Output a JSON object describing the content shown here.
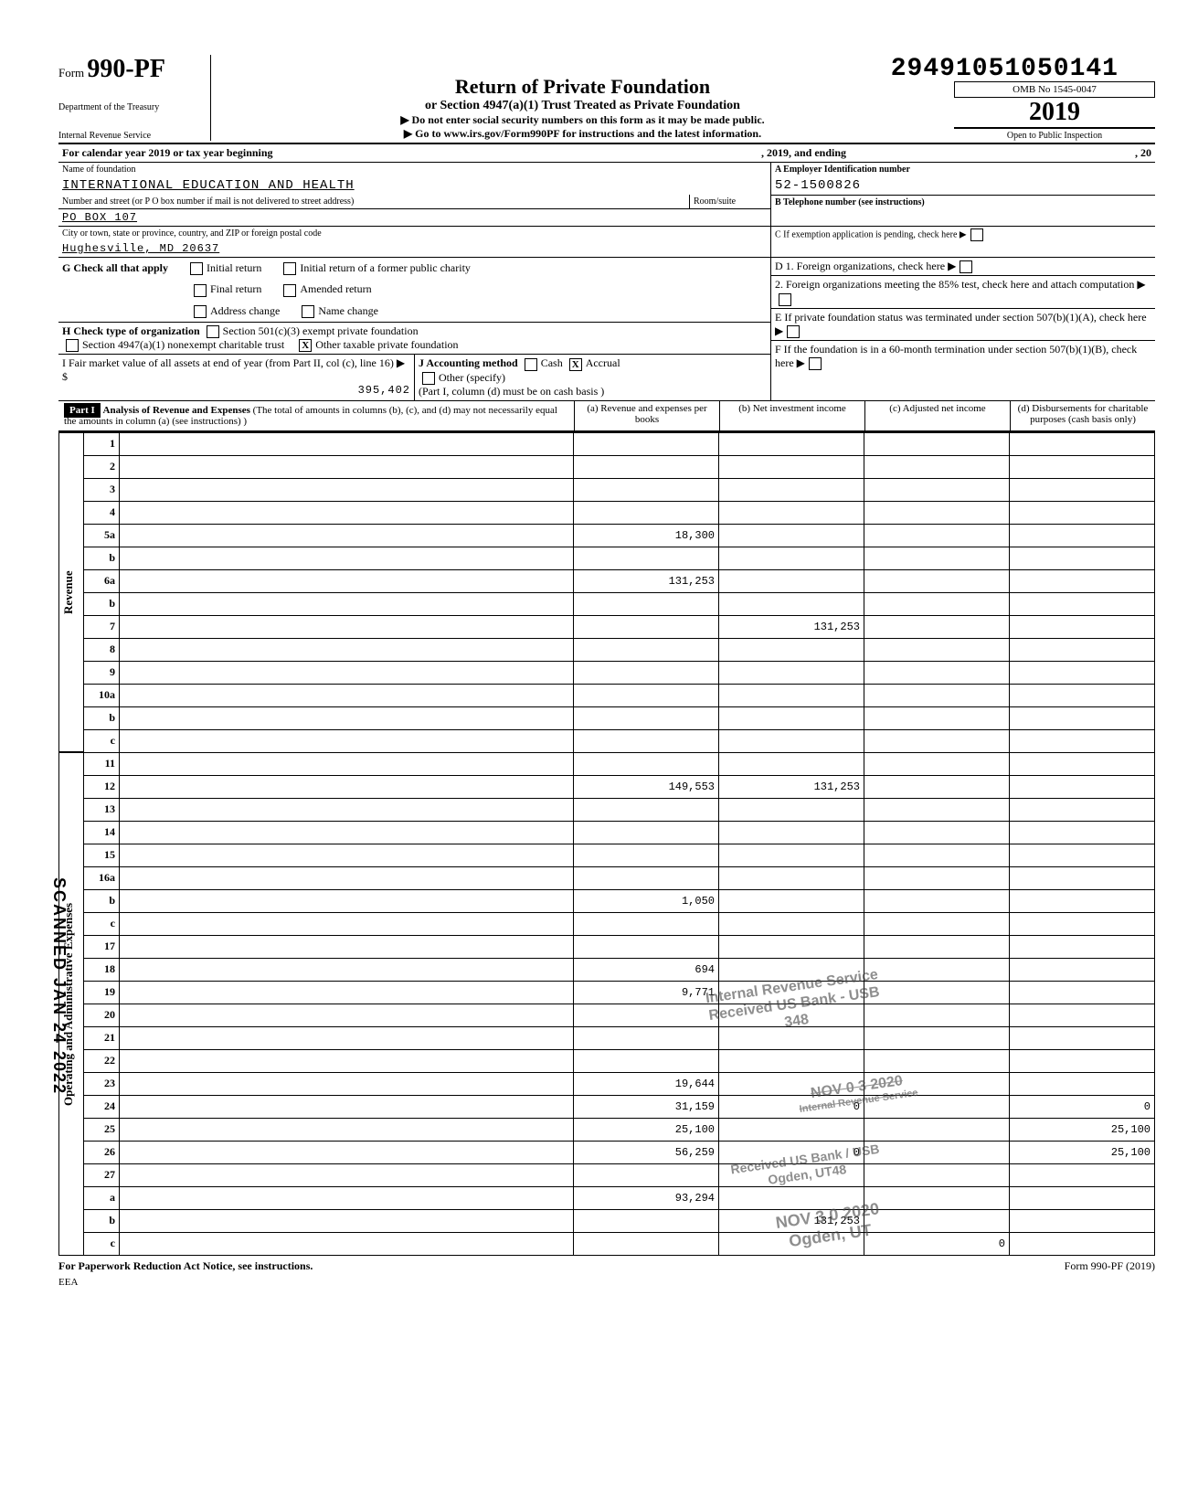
{
  "doc_id": "29491051050141",
  "form": {
    "prefix": "Form",
    "number": "990-PF",
    "dept1": "Department of the Treasury",
    "dept2": "Internal Revenue Service"
  },
  "title": {
    "main": "Return of Private Foundation",
    "sub": "or Section 4947(a)(1) Trust Treated as Private Foundation",
    "instr1": "▶ Do not enter social security numbers on this form as it may be made public.",
    "instr2": "▶ Go to www.irs.gov/Form990PF for instructions and the latest information."
  },
  "right": {
    "omb": "OMB No 1545-0047",
    "year": "2019",
    "open": "Open to Public Inspection"
  },
  "period": {
    "label": "For calendar year 2019 or tax year beginning",
    "mid": ", 2019, and ending",
    "end": ", 20"
  },
  "entity": {
    "name_label": "Name of foundation",
    "name": "INTERNATIONAL EDUCATION AND HEALTH",
    "addr_label": "Number and street (or P O box number if mail is not delivered to street address)",
    "room_label": "Room/suite",
    "addr": "PO BOX 107",
    "city_label": "City or town, state or province, country, and ZIP or foreign postal code",
    "city": "Hughesville, MD 20637",
    "ein_label": "A Employer Identification number",
    "ein": "52-1500826",
    "phone_label": "B Telephone number (see instructions)",
    "c_label": "C  If exemption application is pending, check here",
    "d1": "D  1. Foreign organizations, check here",
    "d2": "2. Foreign organizations meeting the 85% test, check here and attach computation",
    "e": "E  If private foundation status was terminated under section 507(b)(1)(A), check here",
    "f": "F  If the foundation is in a 60-month termination under section 507(b)(1)(B), check here"
  },
  "g": {
    "label": "G  Check all that apply",
    "opts": [
      "Initial return",
      "Final return",
      "Address change",
      "Initial return of a former public charity",
      "Amended return",
      "Name change"
    ]
  },
  "h": {
    "label": "H  Check type of organization",
    "opt1": "Section 501(c)(3) exempt private foundation",
    "opt2": "Section 4947(a)(1) nonexempt charitable trust",
    "opt3": "Other taxable private foundation"
  },
  "i": {
    "label": "I   Fair market value of all assets at end of year (from Part II, col (c), line 16)  ▶ $",
    "value": "395,402"
  },
  "j": {
    "label": "J   Accounting method",
    "cash": "Cash",
    "accrual": "Accrual",
    "other": "Other (specify)",
    "note": "(Part I, column (d) must be on cash basis )"
  },
  "part1": {
    "tag": "Part I",
    "title": "Analysis of Revenue and Expenses",
    "note": "(The total of amounts in columns (b), (c), and (d) may not necessarily equal the amounts in column (a) (see instructions) )",
    "cols": {
      "a": "(a) Revenue and expenses per books",
      "b": "(b) Net investment income",
      "c": "(c) Adjusted net income",
      "d": "(d) Disbursements for charitable purposes (cash basis only)"
    }
  },
  "side_labels": {
    "rev": "Revenue",
    "exp": "Operating and Administrative Expenses"
  },
  "lines": [
    {
      "n": "1",
      "d": "",
      "a": "",
      "b": "",
      "c": ""
    },
    {
      "n": "2",
      "d": "",
      "a": "",
      "b": "",
      "c": ""
    },
    {
      "n": "3",
      "d": "",
      "a": "",
      "b": "",
      "c": ""
    },
    {
      "n": "4",
      "d": "",
      "a": "",
      "b": "",
      "c": ""
    },
    {
      "n": "5a",
      "d": "",
      "a": "18,300",
      "b": "",
      "c": ""
    },
    {
      "n": "b",
      "d": "",
      "a": "",
      "b": "",
      "c": ""
    },
    {
      "n": "6a",
      "d": "",
      "a": "131,253",
      "b": "",
      "c": ""
    },
    {
      "n": "b",
      "d": "",
      "a": "",
      "b": "",
      "c": ""
    },
    {
      "n": "7",
      "d": "",
      "a": "",
      "b": "131,253",
      "c": ""
    },
    {
      "n": "8",
      "d": "",
      "a": "",
      "b": "",
      "c": ""
    },
    {
      "n": "9",
      "d": "",
      "a": "",
      "b": "",
      "c": ""
    },
    {
      "n": "10a",
      "d": "",
      "a": "",
      "b": "",
      "c": ""
    },
    {
      "n": "b",
      "d": "",
      "a": "",
      "b": "",
      "c": ""
    },
    {
      "n": "c",
      "d": "",
      "a": "",
      "b": "",
      "c": ""
    },
    {
      "n": "11",
      "d": "",
      "a": "",
      "b": "",
      "c": ""
    },
    {
      "n": "12",
      "d": "",
      "a": "149,553",
      "b": "131,253",
      "c": ""
    },
    {
      "n": "13",
      "d": "",
      "a": "",
      "b": "",
      "c": ""
    },
    {
      "n": "14",
      "d": "",
      "a": "",
      "b": "",
      "c": ""
    },
    {
      "n": "15",
      "d": "",
      "a": "",
      "b": "",
      "c": ""
    },
    {
      "n": "16a",
      "d": "",
      "a": "",
      "b": "",
      "c": ""
    },
    {
      "n": "b",
      "d": "",
      "a": "1,050",
      "b": "",
      "c": ""
    },
    {
      "n": "c",
      "d": "",
      "a": "",
      "b": "",
      "c": ""
    },
    {
      "n": "17",
      "d": "",
      "a": "",
      "b": "",
      "c": ""
    },
    {
      "n": "18",
      "d": "",
      "a": "694",
      "b": "",
      "c": ""
    },
    {
      "n": "19",
      "d": "",
      "a": "9,771",
      "b": "",
      "c": ""
    },
    {
      "n": "20",
      "d": "",
      "a": "",
      "b": "",
      "c": ""
    },
    {
      "n": "21",
      "d": "",
      "a": "",
      "b": "",
      "c": ""
    },
    {
      "n": "22",
      "d": "",
      "a": "",
      "b": "",
      "c": ""
    },
    {
      "n": "23",
      "d": "",
      "a": "19,644",
      "b": "",
      "c": ""
    },
    {
      "n": "24",
      "d": "0",
      "a": "31,159",
      "b": "0",
      "c": ""
    },
    {
      "n": "25",
      "d": "25,100",
      "a": "25,100",
      "b": "",
      "c": ""
    },
    {
      "n": "26",
      "d": "25,100",
      "a": "56,259",
      "b": "0",
      "c": ""
    },
    {
      "n": "27",
      "d": "",
      "a": "",
      "b": "",
      "c": ""
    },
    {
      "n": "a",
      "d": "",
      "a": "93,294",
      "b": "",
      "c": ""
    },
    {
      "n": "b",
      "d": "",
      "a": "",
      "b": "131,253",
      "c": ""
    },
    {
      "n": "c",
      "d": "",
      "a": "",
      "b": "",
      "c": "0"
    }
  ],
  "footer": {
    "left": "For Paperwork Reduction Act Notice, see instructions.",
    "mid": "EEA",
    "right": "Form 990-PF (2019)"
  },
  "stamps": {
    "s1a": "Internal Revenue Service",
    "s1b": "Received US Bank - USB",
    "s1c": "348",
    "s2a": "NOV 0 3 2020",
    "s2b": "Internal Revenue Service",
    "s3a": "Received US Bank / USB",
    "s3b": "Ogden, UT48",
    "s4a": "NOV 3 0 2020",
    "s4b": "Ogden, UT"
  },
  "scanned": "SCANNED JAN 24 2022",
  "bold_lines": [
    "12",
    "24",
    "26",
    "27",
    "a",
    "b",
    "c"
  ],
  "colors": {
    "text": "#000000",
    "bg": "#ffffff",
    "stamp": "#444444"
  }
}
